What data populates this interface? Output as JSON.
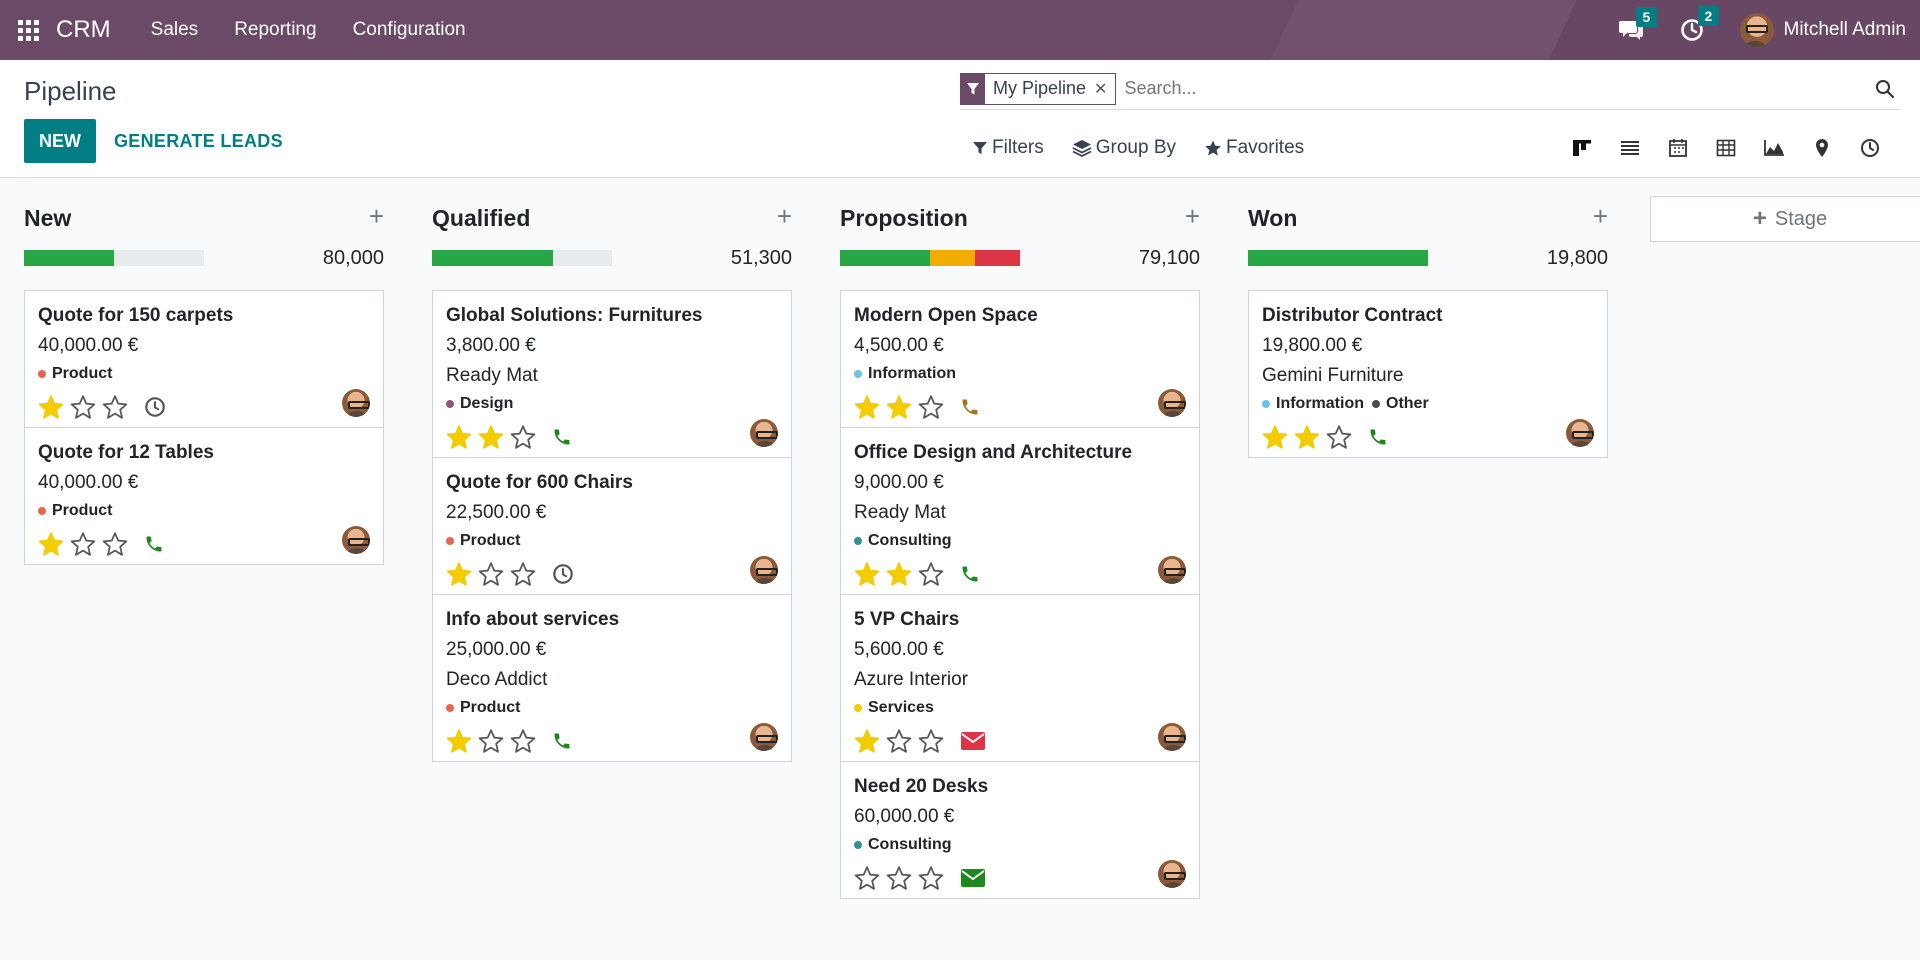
{
  "app": {
    "name": "CRM",
    "menus": [
      "Sales",
      "Reporting",
      "Configuration"
    ],
    "messages_count": "5",
    "activities_count": "2",
    "user_name": "Mitchell Admin"
  },
  "control": {
    "title": "Pipeline",
    "new_label": "NEW",
    "generate_label": "GENERATE LEADS",
    "facet_label": "My Pipeline",
    "search_placeholder": "Search...",
    "filters_label": "Filters",
    "groupby_label": "Group By",
    "favorites_label": "Favorites"
  },
  "colors": {
    "brand": "#6b4a68",
    "accent": "#017e84",
    "green": "#28a745",
    "orange": "#f0ad00",
    "red": "#dc3545",
    "star": "#f3cc00"
  },
  "stage_add_label": "Stage",
  "columns": [
    {
      "title": "New",
      "total": "80,000",
      "progress": [
        {
          "color": "#28a745",
          "fraction": 0.5
        }
      ],
      "cards": [
        {
          "title": "Quote for 150 carpets",
          "amount": "40,000.00 €",
          "partner": "",
          "tags": [
            {
              "name": "Product",
              "color": "#e8644f"
            }
          ],
          "stars": 1,
          "activity": "clock"
        },
        {
          "title": "Quote for 12 Tables",
          "amount": "40,000.00 €",
          "partner": "",
          "tags": [
            {
              "name": "Product",
              "color": "#e8644f"
            }
          ],
          "stars": 1,
          "activity": "phone"
        }
      ]
    },
    {
      "title": "Qualified",
      "total": "51,300",
      "progress": [
        {
          "color": "#28a745",
          "fraction": 0.67
        }
      ],
      "cards": [
        {
          "title": "Global Solutions: Furnitures",
          "amount": "3,800.00 €",
          "partner": "Ready Mat",
          "tags": [
            {
              "name": "Design",
              "color": "#875a7b"
            }
          ],
          "stars": 2,
          "activity": "phone"
        },
        {
          "title": "Quote for 600 Chairs",
          "amount": "22,500.00 €",
          "partner": "",
          "tags": [
            {
              "name": "Product",
              "color": "#e8644f"
            }
          ],
          "stars": 1,
          "activity": "clock"
        },
        {
          "title": "Info about services",
          "amount": "25,000.00 €",
          "partner": "Deco Addict",
          "tags": [
            {
              "name": "Product",
              "color": "#e8644f"
            }
          ],
          "stars": 1,
          "activity": "phone"
        }
      ]
    },
    {
      "title": "Proposition",
      "total": "79,100",
      "progress": [
        {
          "color": "#28a745",
          "fraction": 0.5
        },
        {
          "color": "#f0ad00",
          "fraction": 0.25
        },
        {
          "color": "#dc3545",
          "fraction": 0.25
        }
      ],
      "cards": [
        {
          "title": "Modern Open Space",
          "amount": "4,500.00 €",
          "partner": "",
          "tags": [
            {
              "name": "Information",
              "color": "#6cc1ed"
            }
          ],
          "stars": 2,
          "activity": "phone-warn"
        },
        {
          "title": "Office Design and Architecture",
          "amount": "9,000.00 €",
          "partner": "Ready Mat",
          "tags": [
            {
              "name": "Consulting",
              "color": "#30909a"
            }
          ],
          "stars": 2,
          "activity": "phone"
        },
        {
          "title": "5 VP Chairs",
          "amount": "5,600.00 €",
          "partner": "Azure Interior",
          "tags": [
            {
              "name": "Services",
              "color": "#f3cc00"
            }
          ],
          "stars": 1,
          "activity": "mail-red"
        },
        {
          "title": "Need 20 Desks",
          "amount": "60,000.00 €",
          "partner": "",
          "tags": [
            {
              "name": "Consulting",
              "color": "#30909a"
            }
          ],
          "stars": 0,
          "activity": "mail-green"
        }
      ]
    },
    {
      "title": "Won",
      "total": "19,800",
      "progress": [
        {
          "color": "#28a745",
          "fraction": 1.0
        }
      ],
      "cards": [
        {
          "title": "Distributor Contract",
          "amount": "19,800.00 €",
          "partner": "Gemini Furniture",
          "tags": [
            {
              "name": "Information",
              "color": "#6cc1ed"
            },
            {
              "name": "Other",
              "color": "#4c4c4c"
            }
          ],
          "stars": 2,
          "activity": "phone"
        }
      ]
    }
  ]
}
